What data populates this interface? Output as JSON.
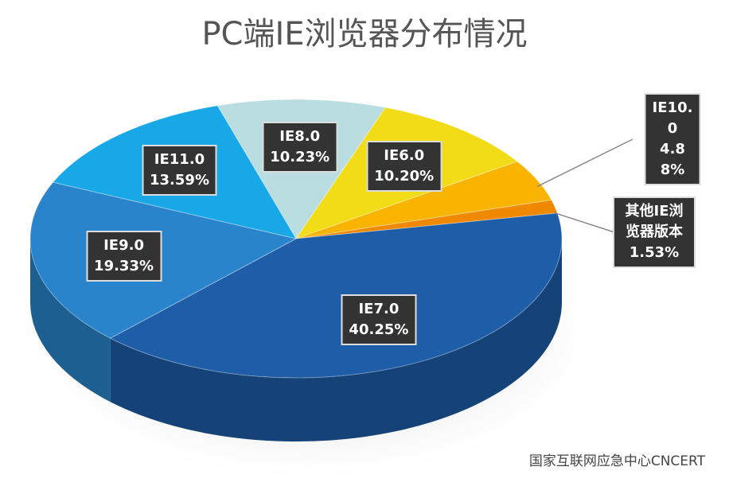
{
  "chart_data": {
    "type": "pie3d",
    "title": "PC端IE浏览器分布情况",
    "categories": [
      "IE8.0",
      "IE6.0",
      "IE10.0",
      "其他IE浏览器版本",
      "IE7.0",
      "IE9.0",
      "IE11.0"
    ],
    "values": [
      10.23,
      10.2,
      4.88,
      1.53,
      40.25,
      19.33,
      13.59
    ],
    "value_labels": [
      "10.23%",
      "10.20%",
      "4.88%",
      "1.53%",
      "40.25%",
      "19.33%",
      "13.59%"
    ],
    "colors": [
      "#b9dde0",
      "#f2dc18",
      "#f9b400",
      "#f08800",
      "#1e5ea8",
      "#2a84cc",
      "#18a8e8"
    ],
    "watermark": "国家互联网应急中心CNCERT"
  }
}
